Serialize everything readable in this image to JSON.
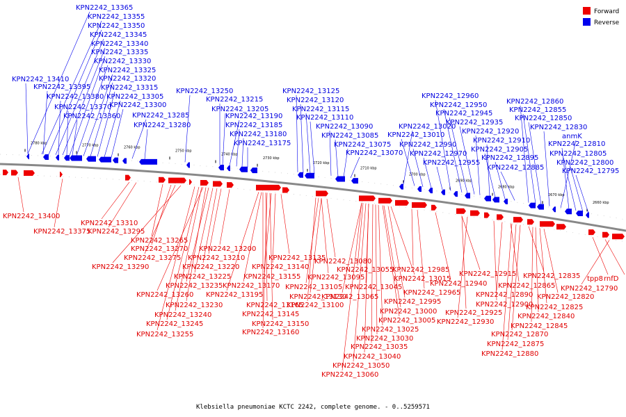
{
  "caption": "Klebsiella pneumoniae KCTC 2242, complete genome. - 0..5259571",
  "legend": [
    {
      "label": "Forward",
      "color": "#ee0000"
    },
    {
      "label": "Reverse",
      "color": "#0000ee"
    }
  ],
  "ticks": [
    "2780 kbp",
    "2770 kbp",
    "2760 kbp",
    "2750 kbp",
    "2740 kbp",
    "2730 kbp",
    "2720 kbp",
    "2710 kbp",
    "2700 kbp",
    "2690 kbp",
    "2680 kbp",
    "2670 kbp",
    "2660 kbp"
  ],
  "reverse_labels": [
    "KPN2242_13365",
    "KPN2242_13355",
    "KPN2242_13350",
    "KPN2242_13345",
    "KPN2242_13340",
    "KPN2242_13335",
    "KPN2242_13330",
    "KPN2242_13325",
    "KPN2242_13320",
    "KPN2242_13410",
    "KPN2242_13315",
    "KPN2242_13395",
    "KPN2242_13305",
    "KPN2242_13380",
    "KPN2242_13300",
    "KPN2242_13370",
    "KPN2242_13360",
    "KPN2242_13285",
    "KPN2242_13280",
    "KPN2242_13250",
    "KPN2242_13215",
    "KPN2242_13205",
    "KPN2242_13190",
    "KPN2242_13185",
    "KPN2242_13180",
    "KPN2242_13175",
    "KPN2242_13125",
    "KPN2242_13120",
    "KPN2242_13115",
    "KPN2242_13110",
    "KPN2242_13090",
    "KPN2242_13085",
    "KPN2242_13075",
    "KPN2242_13070",
    "KPN2242_13020",
    "KPN2242_13010",
    "KPN2242_12990",
    "KPN2242_12970",
    "KPN2242_12955",
    "KPN2242_12960",
    "KPN2242_12950",
    "KPN2242_12945",
    "KPN2242_12935",
    "KPN2242_12920",
    "KPN2242_12910",
    "KPN2242_12905",
    "KPN2242_12895",
    "KPN2242_12885",
    "KPN2242_12860",
    "KPN2242_12855",
    "KPN2242_12850",
    "KPN2242_12830",
    "anmK",
    "KPN2242_12810",
    "KPN2242_12805",
    "KPN2242_12800",
    "KPN2242_12795"
  ],
  "forward_labels": [
    "KPN2242_13400",
    "KPN2242_13375",
    "KPN2242_13310",
    "KPN2242_13295",
    "KPN2242_13265",
    "KPN2242_13270",
    "KPN2242_13275",
    "KPN2242_13290",
    "KPN2242_13200",
    "KPN2242_13210",
    "KPN2242_13220",
    "KPN2242_13225",
    "KPN2242_13235",
    "KPN2242_13260",
    "KPN2242_13230",
    "KPN2242_13240",
    "KPN2242_13245",
    "KPN2242_13255",
    "KPN2242_13135",
    "KPN2242_13140",
    "KPN2242_13155",
    "KPN2242_13170",
    "KPN2242_13195",
    "KPN2242_13165",
    "KPN2242_13145",
    "KPN2242_13150",
    "KPN2242_13160",
    "KPN2242_13080",
    "KPN2242_13095",
    "KPN2242_13105",
    "KPN2242_13130",
    "KPN2242_13100",
    "KPN2242_13055",
    "KPN2242_13045",
    "KPN2242_13065",
    "KPN2242_13015",
    "KPN2242_12995",
    "KPN2242_13000",
    "KPN2242_13005",
    "KPN2242_13025",
    "KPN2242_13030",
    "KPN2242_13035",
    "KPN2242_13040",
    "KPN2242_13050",
    "KPN2242_13060",
    "KPN2242_12985",
    "KPN2242_12965",
    "KPN2242_12940",
    "KPN2242_12915",
    "KPN2242_12925",
    "KPN2242_12930",
    "KPN2242_12900",
    "KPN2242_12890",
    "KPN2242_12865",
    "KPN2242_12835",
    "KPN2242_12820",
    "KPN2242_12825",
    "KPN2242_12840",
    "KPN2242_12845",
    "KPN2242_12870",
    "KPN2242_12875",
    "KPN2242_12880",
    "tpp8",
    "rnfD",
    "KPN2242_12790"
  ]
}
